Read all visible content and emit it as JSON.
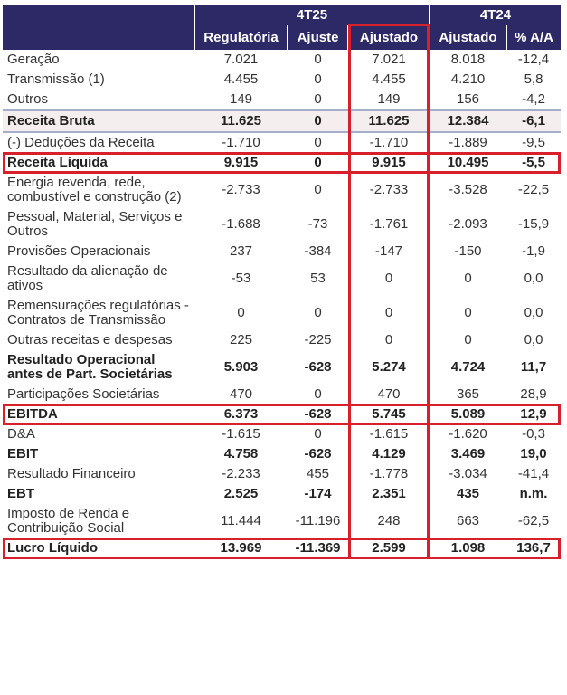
{
  "table": {
    "group_headers": [
      {
        "label": "4T25",
        "span": 3
      },
      {
        "label": "4T24",
        "span": 2
      }
    ],
    "columns": [
      {
        "label": "Regulatória"
      },
      {
        "label": "Ajuste"
      },
      {
        "label": "Ajustado",
        "highlighted": true
      },
      {
        "label": "Ajustado"
      },
      {
        "label": "% A/A"
      }
    ],
    "rows": [
      {
        "label": "Geração",
        "values": [
          "7.021",
          "0",
          "7.021",
          "8.018",
          "-12,4"
        ]
      },
      {
        "label": "Transmissão (1)",
        "values": [
          "4.455",
          "0",
          "4.455",
          "4.210",
          "5,8"
        ]
      },
      {
        "label": "Outros",
        "values": [
          "149",
          "0",
          "149",
          "156",
          "-4,2"
        ]
      },
      {
        "label": "Receita Bruta",
        "values": [
          "11.625",
          "0",
          "11.625",
          "12.384",
          "-6,1"
        ],
        "bold": true,
        "shaded": true
      },
      {
        "label": "(-) Deduções da Receita",
        "values": [
          "-1.710",
          "0",
          "-1.710",
          "-1.889",
          "-9,5"
        ]
      },
      {
        "label": "Receita Líquida",
        "values": [
          "9.915",
          "0",
          "9.915",
          "10.495",
          "-5,5"
        ],
        "bold": true,
        "highlighted": true
      },
      {
        "label": "Energia revenda, rede, combustível e construção (2)",
        "values": [
          "-2.733",
          "0",
          "-2.733",
          "-3.528",
          "-22,5"
        ]
      },
      {
        "label": "Pessoal, Material, Serviços e Outros",
        "values": [
          "-1.688",
          "-73",
          "-1.761",
          "-2.093",
          "-15,9"
        ]
      },
      {
        "label": "Provisões Operacionais",
        "values": [
          "237",
          "-384",
          "-147",
          "-150",
          "-1,9"
        ]
      },
      {
        "label": "Resultado da alienação de ativos",
        "values": [
          "-53",
          "53",
          "0",
          "0",
          "0,0"
        ]
      },
      {
        "label": "Remensurações regulatórias - Contratos de Transmissão",
        "values": [
          "0",
          "0",
          "0",
          "0",
          "0,0"
        ]
      },
      {
        "label": "Outras receitas e despesas",
        "values": [
          "225",
          "-225",
          "0",
          "0",
          "0,0"
        ]
      },
      {
        "label": "Resultado Operacional antes de Part. Societárias",
        "values": [
          "5.903",
          "-628",
          "5.274",
          "4.724",
          "11,7"
        ],
        "bold": true
      },
      {
        "label": "Participações Societárias",
        "values": [
          "470",
          "0",
          "470",
          "365",
          "28,9"
        ]
      },
      {
        "label": "EBITDA",
        "values": [
          "6.373",
          "-628",
          "5.745",
          "5.089",
          "12,9"
        ],
        "bold": true,
        "highlighted": true
      },
      {
        "label": "D&A",
        "values": [
          "-1.615",
          "0",
          "-1.615",
          "-1.620",
          "-0,3"
        ]
      },
      {
        "label": "EBIT",
        "values": [
          "4.758",
          "-628",
          "4.129",
          "3.469",
          "19,0"
        ],
        "bold": true
      },
      {
        "label": "Resultado Financeiro",
        "values": [
          "-2.233",
          "455",
          "-1.778",
          "-3.034",
          "-41,4"
        ]
      },
      {
        "label": "EBT",
        "values": [
          "2.525",
          "-174",
          "2.351",
          "435",
          "n.m."
        ],
        "bold": true
      },
      {
        "label": "Imposto de Renda e Contribuição Social",
        "values": [
          "11.444",
          "-11.196",
          "248",
          "663",
          "-62,5"
        ]
      },
      {
        "label": "Lucro Líquido",
        "values": [
          "13.969",
          "-11.369",
          "2.599",
          "1.098",
          "136,7"
        ],
        "bold": true,
        "highlighted": true
      }
    ]
  }
}
